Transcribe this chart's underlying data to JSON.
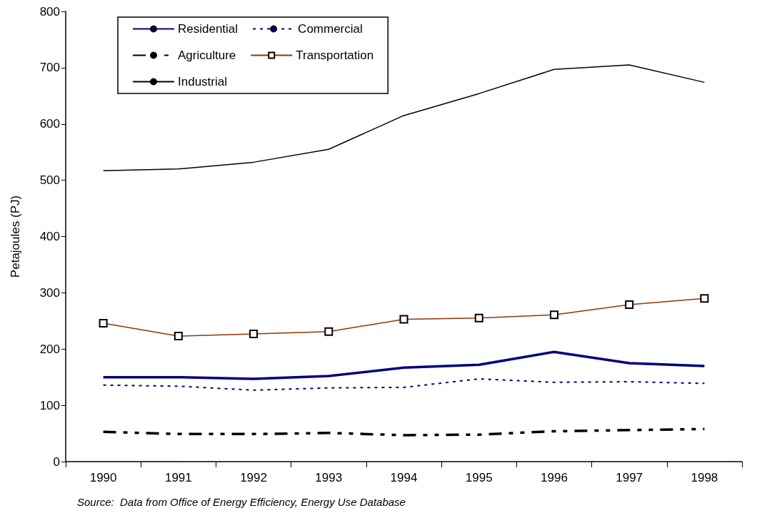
{
  "chart_data": {
    "type": "line",
    "ylabel": "Petajoules (PJ)",
    "categories": [
      "1990",
      "1991",
      "1992",
      "1993",
      "1994",
      "1995",
      "1996",
      "1997",
      "1998"
    ],
    "series": [
      {
        "name": "Residential",
        "color": "#000080",
        "line_style": "solid",
        "marker": "none",
        "values": [
          150,
          150,
          147,
          152,
          167,
          172,
          195,
          175,
          170
        ]
      },
      {
        "name": "Commercial",
        "color": "#000080",
        "line_style": "dotted",
        "marker": "none",
        "values": [
          136,
          134,
          127,
          131,
          132,
          147,
          141,
          142,
          139
        ]
      },
      {
        "name": "Agriculture",
        "color": "#000000",
        "line_style": "dashed",
        "marker": "none",
        "values": [
          53,
          49,
          49,
          51,
          47,
          48,
          54,
          56,
          58
        ]
      },
      {
        "name": "Transportation",
        "color": "#993300",
        "line_style": "solid",
        "marker": "square",
        "values": [
          246,
          223,
          227,
          231,
          253,
          255,
          261,
          279,
          290
        ]
      },
      {
        "name": "Industrial",
        "color": "#000000",
        "line_style": "solid",
        "marker": "none",
        "values": [
          517,
          520,
          532,
          555,
          615,
          654,
          697,
          705,
          674
        ]
      }
    ],
    "ylim": [
      0,
      800
    ],
    "yticks": [
      0,
      100,
      200,
      300,
      400,
      500,
      600,
      700,
      800
    ],
    "grid": false,
    "legend": "top left",
    "annotations": [
      "Source:  Data from Office of Energy Efficiency, Energy Use Database"
    ]
  }
}
